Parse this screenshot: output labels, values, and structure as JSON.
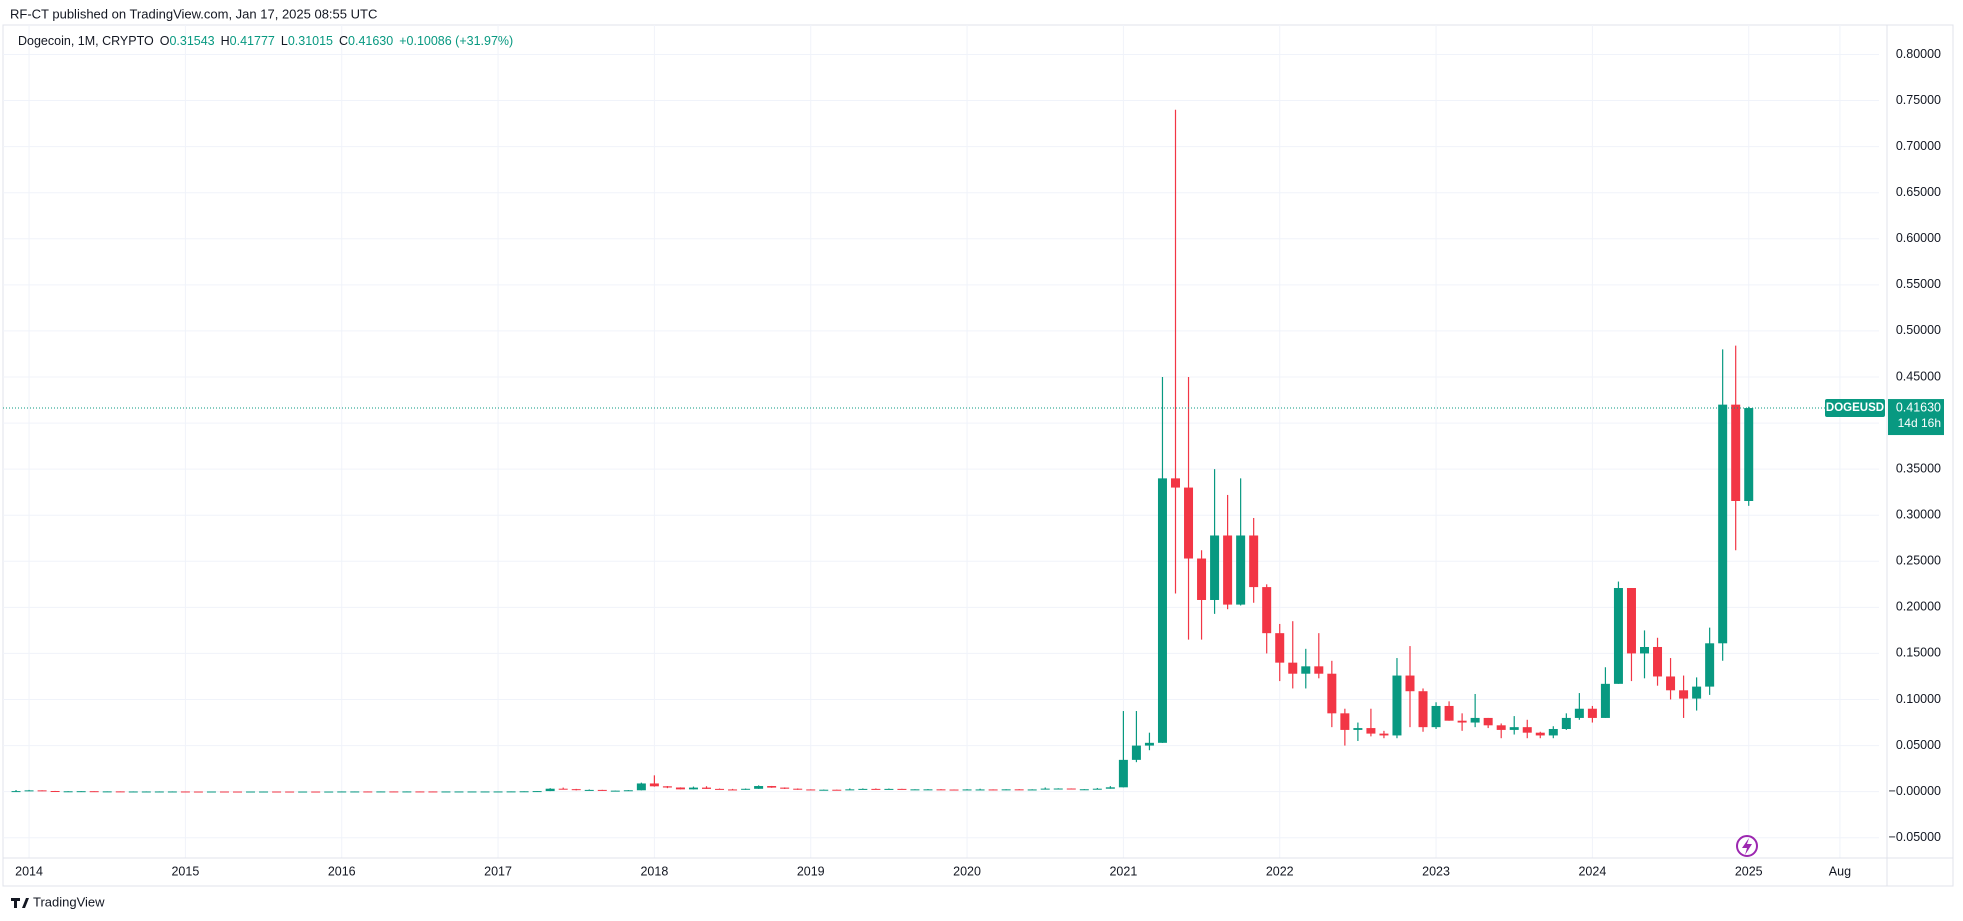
{
  "header": {
    "title": "RF-CT published on TradingView.com, Jan 17, 2025 08:55 UTC"
  },
  "footer": {
    "brand": "TradingView"
  },
  "legend": {
    "name": "Dogecoin, 1M, CRYPTO",
    "items": [
      {
        "key": "O",
        "value": "0.31543"
      },
      {
        "key": "H",
        "value": "0.41777"
      },
      {
        "key": "L",
        "value": "0.31015"
      },
      {
        "key": "C",
        "value": "0.41630"
      }
    ],
    "change": "+0.10086 (+31.97%)"
  },
  "price_tag": {
    "symbol": "DOGEUSD",
    "price": "0.41630",
    "countdown": "14d 16h"
  },
  "chart_data": {
    "type": "candlestick",
    "colors": {
      "up": "#089981",
      "down": "#f23645"
    },
    "grid": true,
    "x": [
      "2013-12",
      "2014-01",
      "2014-02",
      "2014-03",
      "2014-04",
      "2014-05",
      "2014-06",
      "2014-07",
      "2014-08",
      "2014-09",
      "2014-10",
      "2014-11",
      "2014-12",
      "2015-01",
      "2015-02",
      "2015-03",
      "2015-04",
      "2015-05",
      "2015-06",
      "2015-07",
      "2015-08",
      "2015-09",
      "2015-10",
      "2015-11",
      "2015-12",
      "2016-01",
      "2016-02",
      "2016-03",
      "2016-04",
      "2016-05",
      "2016-06",
      "2016-07",
      "2016-08",
      "2016-09",
      "2016-10",
      "2016-11",
      "2016-12",
      "2017-01",
      "2017-02",
      "2017-03",
      "2017-04",
      "2017-05",
      "2017-06",
      "2017-07",
      "2017-08",
      "2017-09",
      "2017-10",
      "2017-11",
      "2017-12",
      "2018-01",
      "2018-02",
      "2018-03",
      "2018-04",
      "2018-05",
      "2018-06",
      "2018-07",
      "2018-08",
      "2018-09",
      "2018-10",
      "2018-11",
      "2018-12",
      "2019-01",
      "2019-02",
      "2019-03",
      "2019-04",
      "2019-05",
      "2019-06",
      "2019-07",
      "2019-08",
      "2019-09",
      "2019-10",
      "2019-11",
      "2019-12",
      "2020-01",
      "2020-02",
      "2020-03",
      "2020-04",
      "2020-05",
      "2020-06",
      "2020-07",
      "2020-08",
      "2020-09",
      "2020-10",
      "2020-11",
      "2020-12",
      "2021-01",
      "2021-02",
      "2021-03",
      "2021-04",
      "2021-05",
      "2021-06",
      "2021-07",
      "2021-08",
      "2021-09",
      "2021-10",
      "2021-11",
      "2021-12",
      "2022-01",
      "2022-02",
      "2022-03",
      "2022-04",
      "2022-05",
      "2022-06",
      "2022-07",
      "2022-08",
      "2022-09",
      "2022-10",
      "2022-11",
      "2022-12",
      "2023-01",
      "2023-02",
      "2023-03",
      "2023-04",
      "2023-05",
      "2023-06",
      "2023-07",
      "2023-08",
      "2023-09",
      "2023-10",
      "2023-11",
      "2023-12",
      "2024-01",
      "2024-02",
      "2024-03",
      "2024-04",
      "2024-05",
      "2024-06",
      "2024-07",
      "2024-08",
      "2024-09",
      "2024-10",
      "2024-11",
      "2024-12",
      "2025-01"
    ],
    "ohlc": [
      [
        0.0003,
        0.0018,
        0.0002,
        0.0006
      ],
      [
        0.0006,
        0.0019,
        0.0005,
        0.0014
      ],
      [
        0.0014,
        0.0015,
        0.0006,
        0.0007
      ],
      [
        0.0007,
        0.0008,
        0.0004,
        0.0004
      ],
      [
        0.0004,
        0.0006,
        0.0003,
        0.0004
      ],
      [
        0.0004,
        0.0006,
        0.0003,
        0.0005
      ],
      [
        0.0005,
        0.0005,
        0.0003,
        0.0003
      ],
      [
        0.0003,
        0.0003,
        0.0002,
        0.0003
      ],
      [
        0.0003,
        0.0003,
        0.0002,
        0.0002
      ],
      [
        0.0002,
        0.0003,
        0.0002,
        0.0002
      ],
      [
        0.0002,
        0.0003,
        0.0002,
        0.0002
      ],
      [
        0.0002,
        0.0003,
        0.0002,
        0.0002
      ],
      [
        0.0002,
        0.0003,
        0.0002,
        0.0002
      ],
      [
        0.0002,
        0.00021,
        0.00012,
        0.00015
      ],
      [
        0.00015,
        0.00016,
        0.00012,
        0.00013
      ],
      [
        0.00013,
        0.00018,
        0.00012,
        0.00017
      ],
      [
        0.00017,
        0.00017,
        0.00013,
        0.00014
      ],
      [
        0.00014,
        0.00015,
        0.00012,
        0.00013
      ],
      [
        0.00013,
        0.00017,
        0.00012,
        0.00016
      ],
      [
        0.00016,
        0.00019,
        0.00014,
        0.00016
      ],
      [
        0.00016,
        0.00017,
        0.00012,
        0.00014
      ],
      [
        0.00014,
        0.00015,
        0.00011,
        0.00012
      ],
      [
        0.00012,
        0.00015,
        0.00011,
        0.00014
      ],
      [
        0.00014,
        0.00015,
        0.0001,
        0.00012
      ],
      [
        0.00012,
        0.00016,
        0.00011,
        0.00014
      ],
      [
        0.00014,
        0.00025,
        0.00014,
        0.00022
      ],
      [
        0.00022,
        0.00024,
        0.00019,
        0.00022
      ],
      [
        0.00022,
        0.00023,
        0.00018,
        0.0002
      ],
      [
        0.0002,
        0.00026,
        0.00019,
        0.00024
      ],
      [
        0.00024,
        0.00025,
        0.0002,
        0.00022
      ],
      [
        0.00022,
        0.00028,
        0.0002,
        0.00024
      ],
      [
        0.00024,
        0.00025,
        0.0002,
        0.00023
      ],
      [
        0.00023,
        0.00024,
        0.00019,
        0.00021
      ],
      [
        0.00021,
        0.00023,
        0.0002,
        0.00022
      ],
      [
        0.00022,
        0.00023,
        0.00021,
        0.00022
      ],
      [
        0.00022,
        0.00023,
        0.00021,
        0.00022
      ],
      [
        0.00022,
        0.00024,
        0.00021,
        0.00022
      ],
      [
        0.00022,
        0.00025,
        0.00021,
        0.00023
      ],
      [
        0.00023,
        0.0003,
        0.00022,
        0.00029
      ],
      [
        0.00029,
        0.00045,
        0.00026,
        0.00041
      ],
      [
        0.00041,
        0.00065,
        0.00038,
        0.00061
      ],
      [
        0.00061,
        0.0038,
        0.00058,
        0.0032
      ],
      [
        0.0032,
        0.0044,
        0.0024,
        0.0027
      ],
      [
        0.0027,
        0.003,
        0.0014,
        0.0017
      ],
      [
        0.0017,
        0.0024,
        0.0016,
        0.0019
      ],
      [
        0.0019,
        0.002,
        0.0009,
        0.0011
      ],
      [
        0.0011,
        0.0013,
        0.001,
        0.0011
      ],
      [
        0.0011,
        0.0017,
        0.001,
        0.0015
      ],
      [
        0.0015,
        0.0098,
        0.0014,
        0.0089
      ],
      [
        0.0089,
        0.0177,
        0.0054,
        0.0058
      ],
      [
        0.0058,
        0.0061,
        0.0038,
        0.0045
      ],
      [
        0.0045,
        0.0047,
        0.0024,
        0.0025
      ],
      [
        0.0025,
        0.0055,
        0.0024,
        0.0044
      ],
      [
        0.0044,
        0.0059,
        0.003,
        0.003
      ],
      [
        0.003,
        0.0034,
        0.0023,
        0.0024
      ],
      [
        0.0024,
        0.003,
        0.0022,
        0.0023
      ],
      [
        0.0023,
        0.0034,
        0.002,
        0.0031
      ],
      [
        0.0031,
        0.0068,
        0.003,
        0.0061
      ],
      [
        0.0061,
        0.0062,
        0.0042,
        0.0044
      ],
      [
        0.0044,
        0.0046,
        0.0029,
        0.0032
      ],
      [
        0.0032,
        0.0035,
        0.002,
        0.0024
      ],
      [
        0.0024,
        0.0025,
        0.0018,
        0.0019
      ],
      [
        0.0019,
        0.0023,
        0.0018,
        0.0021
      ],
      [
        0.0021,
        0.0022,
        0.0018,
        0.0019
      ],
      [
        0.0019,
        0.0035,
        0.0019,
        0.0025
      ],
      [
        0.0025,
        0.0035,
        0.0024,
        0.003
      ],
      [
        0.003,
        0.0035,
        0.0027,
        0.0029
      ],
      [
        0.0029,
        0.0034,
        0.0026,
        0.003
      ],
      [
        0.003,
        0.0031,
        0.0024,
        0.0025
      ],
      [
        0.0025,
        0.0026,
        0.0022,
        0.0025
      ],
      [
        0.0025,
        0.0028,
        0.0023,
        0.0025
      ],
      [
        0.0025,
        0.0027,
        0.0021,
        0.0023
      ],
      [
        0.0023,
        0.0024,
        0.0018,
        0.002
      ],
      [
        0.002,
        0.0027,
        0.002,
        0.0024
      ],
      [
        0.0024,
        0.0032,
        0.0023,
        0.0024
      ],
      [
        0.0024,
        0.0025,
        0.0014,
        0.0017
      ],
      [
        0.0017,
        0.0026,
        0.0016,
        0.0025
      ],
      [
        0.0025,
        0.0027,
        0.0023,
        0.0024
      ],
      [
        0.0024,
        0.0026,
        0.0023,
        0.0024
      ],
      [
        0.0024,
        0.0045,
        0.0023,
        0.0033
      ],
      [
        0.0033,
        0.0037,
        0.0029,
        0.0034
      ],
      [
        0.0034,
        0.0035,
        0.0025,
        0.0026
      ],
      [
        0.0026,
        0.0028,
        0.0024,
        0.0026
      ],
      [
        0.0026,
        0.004,
        0.0025,
        0.0032
      ],
      [
        0.0032,
        0.006,
        0.0032,
        0.0047
      ],
      [
        0.0047,
        0.0875,
        0.0046,
        0.0345
      ],
      [
        0.0345,
        0.0875,
        0.032,
        0.05
      ],
      [
        0.05,
        0.064,
        0.045,
        0.053
      ],
      [
        0.053,
        0.45,
        0.053,
        0.34
      ],
      [
        0.34,
        0.74,
        0.215,
        0.33
      ],
      [
        0.33,
        0.45,
        0.165,
        0.253
      ],
      [
        0.253,
        0.262,
        0.165,
        0.208
      ],
      [
        0.208,
        0.35,
        0.193,
        0.278
      ],
      [
        0.278,
        0.322,
        0.198,
        0.203
      ],
      [
        0.203,
        0.34,
        0.202,
        0.278
      ],
      [
        0.278,
        0.297,
        0.205,
        0.222
      ],
      [
        0.222,
        0.225,
        0.15,
        0.172
      ],
      [
        0.172,
        0.182,
        0.12,
        0.14
      ],
      [
        0.14,
        0.185,
        0.112,
        0.128
      ],
      [
        0.128,
        0.155,
        0.112,
        0.136
      ],
      [
        0.136,
        0.172,
        0.123,
        0.128
      ],
      [
        0.128,
        0.142,
        0.07,
        0.085
      ],
      [
        0.085,
        0.09,
        0.05,
        0.067
      ],
      [
        0.067,
        0.075,
        0.055,
        0.069
      ],
      [
        0.069,
        0.09,
        0.06,
        0.063
      ],
      [
        0.063,
        0.066,
        0.058,
        0.061
      ],
      [
        0.061,
        0.145,
        0.058,
        0.126
      ],
      [
        0.126,
        0.158,
        0.07,
        0.109
      ],
      [
        0.109,
        0.112,
        0.065,
        0.07
      ],
      [
        0.07,
        0.097,
        0.068,
        0.093
      ],
      [
        0.093,
        0.098,
        0.077,
        0.077
      ],
      [
        0.077,
        0.085,
        0.066,
        0.075
      ],
      [
        0.075,
        0.106,
        0.07,
        0.08
      ],
      [
        0.08,
        0.08,
        0.069,
        0.072
      ],
      [
        0.072,
        0.074,
        0.058,
        0.067
      ],
      [
        0.067,
        0.082,
        0.062,
        0.07
      ],
      [
        0.07,
        0.078,
        0.058,
        0.064
      ],
      [
        0.064,
        0.065,
        0.058,
        0.061
      ],
      [
        0.061,
        0.071,
        0.058,
        0.068
      ],
      [
        0.068,
        0.085,
        0.067,
        0.08
      ],
      [
        0.08,
        0.107,
        0.078,
        0.09
      ],
      [
        0.09,
        0.093,
        0.075,
        0.08
      ],
      [
        0.08,
        0.135,
        0.08,
        0.117
      ],
      [
        0.117,
        0.228,
        0.117,
        0.221
      ],
      [
        0.221,
        0.221,
        0.12,
        0.15
      ],
      [
        0.15,
        0.175,
        0.123,
        0.157
      ],
      [
        0.157,
        0.167,
        0.115,
        0.125
      ],
      [
        0.125,
        0.145,
        0.1,
        0.11
      ],
      [
        0.11,
        0.126,
        0.08,
        0.101
      ],
      [
        0.101,
        0.124,
        0.088,
        0.114
      ],
      [
        0.114,
        0.178,
        0.105,
        0.161
      ],
      [
        0.161,
        0.48,
        0.142,
        0.42
      ],
      [
        0.42,
        0.484,
        0.262,
        0.31543
      ],
      [
        0.31543,
        0.41777,
        0.31015,
        0.4163
      ]
    ],
    "xlim": [
      "2013-11",
      "2025-11"
    ],
    "xticks": [
      {
        "value": "2014-01",
        "label": "2014"
      },
      {
        "value": "2015-01",
        "label": "2015"
      },
      {
        "value": "2016-01",
        "label": "2016"
      },
      {
        "value": "2017-01",
        "label": "2017"
      },
      {
        "value": "2018-01",
        "label": "2018"
      },
      {
        "value": "2019-01",
        "label": "2019"
      },
      {
        "value": "2020-01",
        "label": "2020"
      },
      {
        "value": "2021-01",
        "label": "2021"
      },
      {
        "value": "2022-01",
        "label": "2022"
      },
      {
        "value": "2023-01",
        "label": "2023"
      },
      {
        "value": "2024-01",
        "label": "2024"
      },
      {
        "value": "2025-01",
        "label": "2025"
      },
      {
        "value": "2025-08",
        "label": "Aug"
      }
    ],
    "ylim": [
      -0.072,
      0.832
    ],
    "yticks": [
      {
        "value": -0.05,
        "label": "−0.05000"
      },
      {
        "value": 0,
        "label": "−0.00000"
      },
      {
        "value": 0.05,
        "label": "0.05000"
      },
      {
        "value": 0.1,
        "label": "0.10000"
      },
      {
        "value": 0.15,
        "label": "0.15000"
      },
      {
        "value": 0.2,
        "label": "0.20000"
      },
      {
        "value": 0.25,
        "label": "0.25000"
      },
      {
        "value": 0.3,
        "label": "0.30000"
      },
      {
        "value": 0.35,
        "label": "0.35000"
      },
      {
        "value": 0.4,
        "label": "0.40000"
      },
      {
        "value": 0.45,
        "label": "0.45000"
      },
      {
        "value": 0.5,
        "label": "0.50000"
      },
      {
        "value": 0.55,
        "label": "0.55000"
      },
      {
        "value": 0.6,
        "label": "0.60000"
      },
      {
        "value": 0.65,
        "label": "0.65000"
      },
      {
        "value": 0.7,
        "label": "0.70000"
      },
      {
        "value": 0.75,
        "label": "0.75000"
      },
      {
        "value": 0.8,
        "label": "0.80000"
      }
    ]
  }
}
